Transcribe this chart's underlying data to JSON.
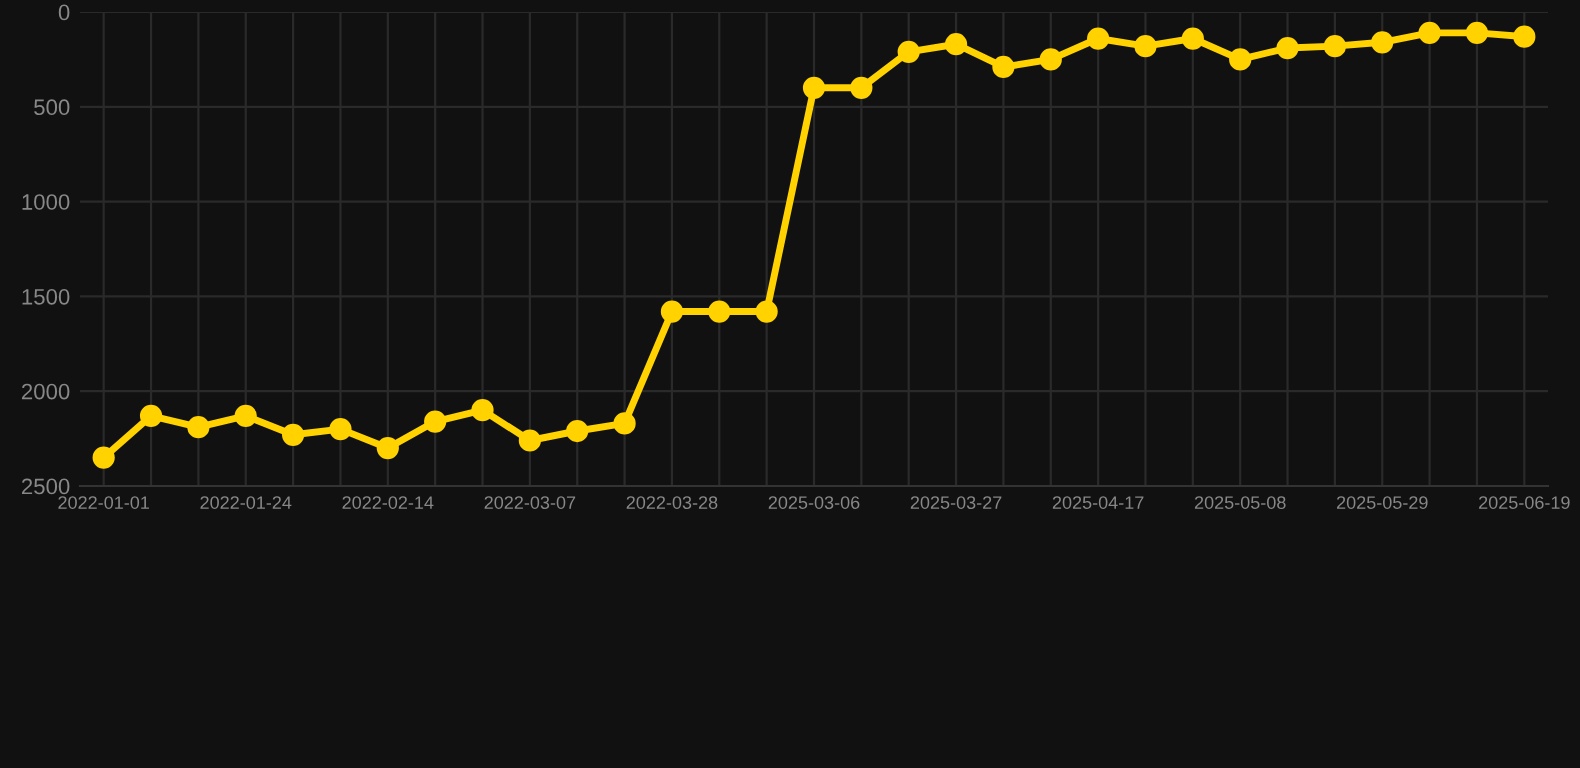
{
  "chart_data": {
    "type": "line",
    "categories": [
      "2022-01-01",
      null,
      null,
      "2022-01-24",
      null,
      null,
      "2022-02-14",
      null,
      null,
      "2022-03-07",
      null,
      null,
      "2022-03-28",
      null,
      null,
      "2025-03-06",
      null,
      null,
      "2025-03-27",
      null,
      null,
      "2025-04-17",
      null,
      null,
      "2025-05-08",
      null,
      null,
      "2025-05-29",
      null,
      null,
      "2025-06-19"
    ],
    "series": [
      {
        "color": "#ffd200",
        "values": [
          2350,
          2130,
          2190,
          2130,
          2230,
          2200,
          2300,
          2160,
          2100,
          2260,
          2210,
          2170,
          1580,
          1580,
          1580,
          400,
          400,
          210,
          170,
          290,
          250,
          140,
          180,
          140,
          250,
          190,
          180,
          160,
          110,
          110,
          130
        ]
      }
    ],
    "ylim": [
      2500,
      0
    ],
    "yticks": [
      0,
      500,
      1000,
      1500,
      2000,
      2500
    ],
    "grid": true,
    "marker": "circle",
    "line_style": "solid"
  }
}
